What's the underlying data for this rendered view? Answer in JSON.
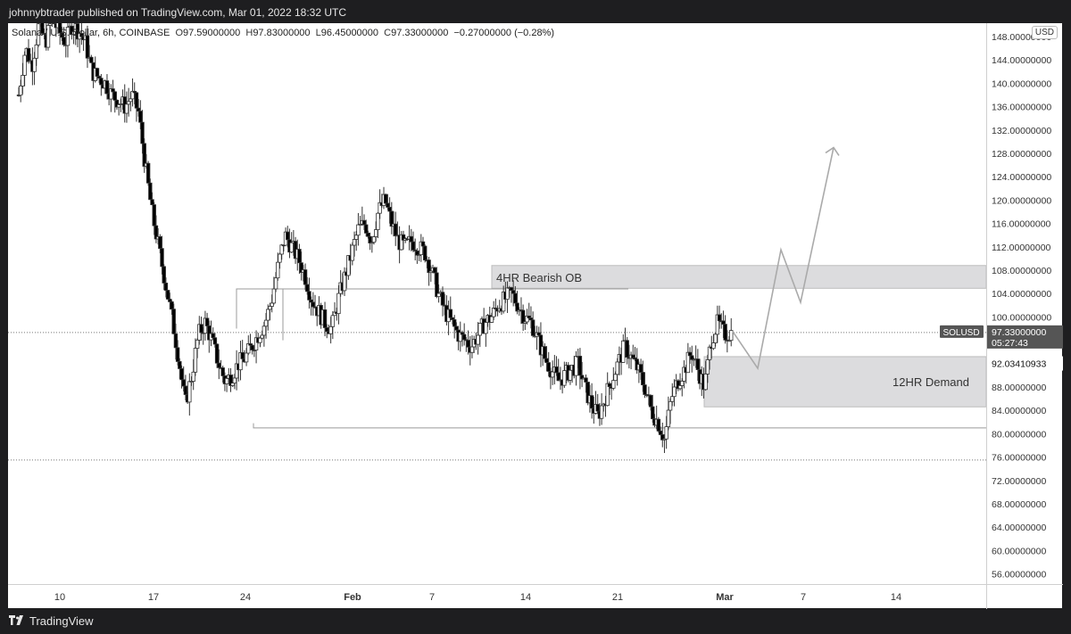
{
  "header": {
    "published_text": "johnnybtrader published on TradingView.com, Mar 01, 2022 18:32 UTC"
  },
  "legend": {
    "symbol": "Solana / U.S. Dollar, 6h, COINBASE",
    "open_label": "O",
    "open": "97.59000000",
    "high_label": "H",
    "high": "97.83000000",
    "low_label": "L",
    "low": "96.45000000",
    "close_label": "C",
    "close": "97.33000000",
    "change": "−0.27000000 (−0.28%)"
  },
  "price_axis": {
    "currency_button": "USD",
    "ticks": [
      "148.00000000",
      "144.00000000",
      "140.00000000",
      "136.00000000",
      "132.00000000",
      "128.00000000",
      "124.00000000",
      "120.00000000",
      "116.00000000",
      "112.00000000",
      "108.00000000",
      "104.00000000",
      "100.00000000",
      "92.03410933",
      "88.00000000",
      "84.00000000",
      "80.00000000",
      "76.00000000",
      "72.00000000",
      "68.00000000",
      "64.00000000",
      "60.00000000",
      "56.00000000"
    ],
    "tick_values": [
      148,
      144,
      140,
      136,
      132,
      128,
      124,
      120,
      116,
      112,
      108,
      104,
      100,
      92.0341,
      88,
      84,
      80,
      76,
      72,
      68,
      64,
      60,
      56
    ],
    "last_price": {
      "symbol": "SOLUSD",
      "price": "97.33000000",
      "countdown": "05:27:43",
      "value": 97.33
    }
  },
  "time_axis": {
    "labels": [
      "10",
      "17",
      "24",
      "Feb",
      "7",
      "14",
      "21",
      "Mar",
      "7",
      "14"
    ],
    "bold": [
      false,
      false,
      false,
      true,
      false,
      false,
      false,
      true,
      false,
      false
    ]
  },
  "drawings": {
    "bearish_ob": {
      "label": "4HR Bearish OB",
      "top": 108.8,
      "bottom": 104.9
    },
    "demand": {
      "label": "12HR Demand",
      "top": 93.2,
      "bottom": 84.6
    },
    "support_line": 81.0,
    "resistance_line": 104.8,
    "dotted_low": 75.5,
    "projection_path": [
      97.5,
      91.2,
      111.5,
      102.5,
      129.0
    ]
  },
  "chart_data": {
    "type": "candlestick",
    "symbol": "SOLUSD",
    "ylim": [
      54,
      151
    ],
    "price_path": [
      138,
      146,
      143,
      150,
      147,
      151,
      149,
      147,
      150,
      149,
      147,
      142,
      141,
      140,
      138,
      137,
      136,
      138,
      135,
      126,
      118,
      112,
      106,
      100,
      93,
      85,
      90,
      97,
      99,
      96,
      92,
      89,
      90,
      92,
      93,
      95,
      97,
      99,
      103,
      109,
      114,
      112,
      110,
      107,
      103,
      101,
      99,
      98,
      103,
      107,
      111,
      115,
      116,
      113,
      118,
      120,
      116,
      113,
      112,
      113,
      112,
      111,
      108,
      104,
      101,
      99,
      97,
      96,
      95,
      97,
      99,
      100,
      102,
      103,
      104,
      102,
      100,
      99,
      96,
      93,
      91,
      89,
      90,
      91,
      92,
      88,
      85,
      83,
      86,
      89,
      92,
      95,
      93,
      91,
      88,
      84,
      82,
      79,
      86,
      89,
      91,
      94,
      91,
      88,
      96,
      99,
      97,
      97.33
    ],
    "legend_values": {
      "open": 97.59,
      "high": 97.83,
      "low": 96.45,
      "close": 97.33,
      "change": -0.27,
      "change_pct": -0.28
    }
  },
  "footer": {
    "brand": "TradingView"
  },
  "colors": {
    "up_candle": "#ffffff",
    "down_candle": "#000000",
    "candle_outline": "#333333",
    "zone_fill": "#dcdcde",
    "line": "#9b9b9b",
    "last_price_badge": "#555555"
  }
}
